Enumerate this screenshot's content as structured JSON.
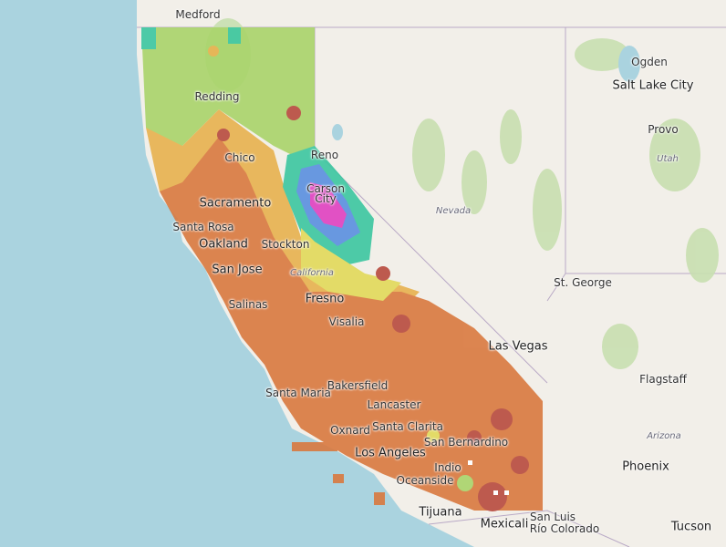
{
  "map": {
    "cities": [
      {
        "name": "Medford",
        "cls": "l-city"
      },
      {
        "name": "Redding",
        "cls": "l-city"
      },
      {
        "name": "Chico",
        "cls": "l-city"
      },
      {
        "name": "Reno",
        "cls": "l-city"
      },
      {
        "name": "Carson",
        "cls": "l-city"
      },
      {
        "name": "City",
        "cls": "l-city"
      },
      {
        "name": "Sacramento",
        "cls": "l-big"
      },
      {
        "name": "Santa Rosa",
        "cls": "l-city"
      },
      {
        "name": "Oakland",
        "cls": "l-big"
      },
      {
        "name": "Stockton",
        "cls": "l-city"
      },
      {
        "name": "San Jose",
        "cls": "l-big"
      },
      {
        "name": "Salinas",
        "cls": "l-city"
      },
      {
        "name": "Fresno",
        "cls": "l-big"
      },
      {
        "name": "Visalia",
        "cls": "l-city"
      },
      {
        "name": "Santa Maria",
        "cls": "l-city"
      },
      {
        "name": "Bakersfield",
        "cls": "l-city"
      },
      {
        "name": "Lancaster",
        "cls": "l-city"
      },
      {
        "name": "Oxnard",
        "cls": "l-city"
      },
      {
        "name": "Santa Clarita",
        "cls": "l-city"
      },
      {
        "name": "San Bernardino",
        "cls": "l-city"
      },
      {
        "name": "Los Angeles",
        "cls": "l-big"
      },
      {
        "name": "Indio",
        "cls": "l-city"
      },
      {
        "name": "Oceanside",
        "cls": "l-city"
      },
      {
        "name": "Tijuana",
        "cls": "l-big"
      },
      {
        "name": "Mexicali",
        "cls": "l-big"
      },
      {
        "name": "San Luis",
        "cls": "l-city"
      },
      {
        "name": "Río Colorado",
        "cls": "l-city"
      },
      {
        "name": "Las Vegas",
        "cls": "l-big"
      },
      {
        "name": "St. George",
        "cls": "l-city"
      },
      {
        "name": "Ogden",
        "cls": "l-city"
      },
      {
        "name": "Salt Lake City",
        "cls": "l-big"
      },
      {
        "name": "Provo",
        "cls": "l-city"
      },
      {
        "name": "Flagstaff",
        "cls": "l-city"
      },
      {
        "name": "Phoenix",
        "cls": "l-big"
      },
      {
        "name": "Tucson",
        "cls": "l-big"
      }
    ],
    "regions": [
      "Nevada",
      "California",
      "Utah",
      "Arizona"
    ],
    "colors": {
      "ocean": "#aad3df",
      "land": "#f2efe9",
      "park": "#c8dfb0",
      "lake": "#aad3df",
      "heat_hot": "#b84a3e",
      "heat_warm": "#d9793f",
      "heat_mid": "#e8b24e",
      "heat_yellow": "#e2d95a",
      "heat_green": "#a9d46a",
      "heat_teal": "#3cc7a0",
      "heat_blue": "#5a8fe0",
      "heat_magenta": "#e040c0"
    }
  }
}
